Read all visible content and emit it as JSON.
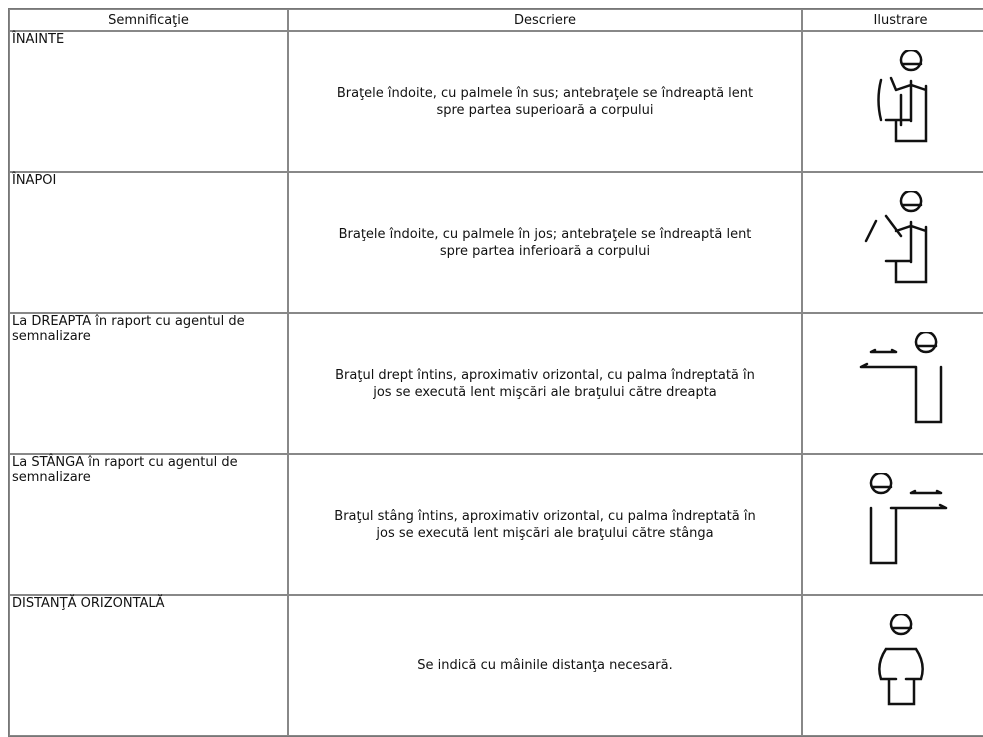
{
  "table": {
    "headers": [
      "Semnificaţie",
      "Descriere",
      "Ilustrare"
    ],
    "rows": [
      {
        "meaning": "ÎNAINTE",
        "description": "Braţele îndoite, cu palmele în sus; antebraţele se îndreaptă lent spre partea superioară a corpului"
      },
      {
        "meaning": "ÎNAPOI",
        "description": "Braţele îndoite, cu palmele în jos; antebraţele se îndreaptă lent spre partea inferioară a corpului"
      },
      {
        "meaning": "La DREAPTA în raport cu agentul de semnalizare",
        "description": "Braţul drept întins, aproximativ orizontal, cu palma îndreptată în jos se execută lent mişcări ale braţului către dreapta"
      },
      {
        "meaning": "La STÂNGA în raport cu agentul de semnalizare",
        "description": "Braţul stâng întins, aproximativ orizontal, cu palma îndreptată în jos se execută lent mişcări ale braţului către stânga"
      },
      {
        "meaning": "DISTANŢĂ ORIZONTALĂ",
        "description": "Se indică cu mâinile distanţa necesară."
      }
    ]
  }
}
